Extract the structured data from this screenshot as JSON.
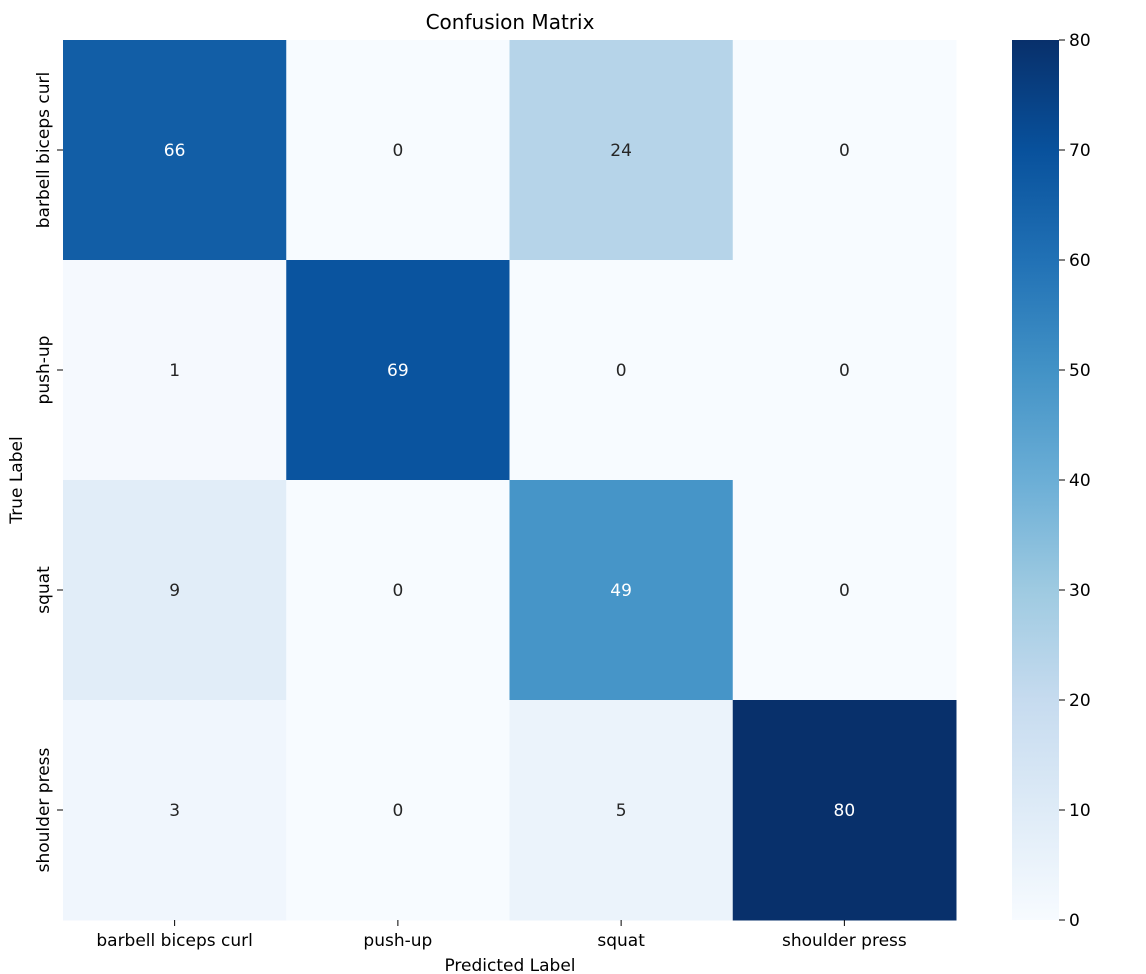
{
  "chart_data": {
    "type": "heatmap",
    "title": "Confusion Matrix",
    "xlabel": "Predicted Label",
    "ylabel": "True Label",
    "x_categories": [
      "barbell biceps curl",
      "push-up",
      "squat",
      "shoulder press"
    ],
    "y_categories": [
      "barbell biceps curl",
      "push-up",
      "squat",
      "shoulder press"
    ],
    "values": [
      [
        66,
        0,
        24,
        0
      ],
      [
        1,
        69,
        0,
        0
      ],
      [
        9,
        0,
        49,
        0
      ],
      [
        3,
        0,
        5,
        80
      ]
    ],
    "colorbar": {
      "range": [
        0,
        80
      ],
      "ticks": [
        0,
        10,
        20,
        30,
        40,
        50,
        60,
        70,
        80
      ],
      "colormap": "Blues"
    },
    "colors": {
      "low": "#f7fbff",
      "high": "#08306b",
      "dark_text": "#262626",
      "light_text": "#ffffff"
    }
  }
}
